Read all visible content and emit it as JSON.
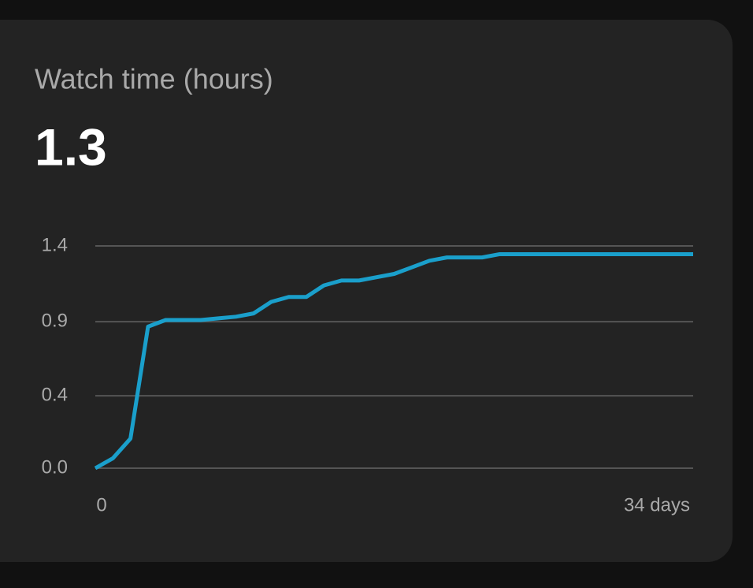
{
  "chart_data": {
    "type": "line",
    "title": "Watch time (hours)",
    "headline": "1.3",
    "x": [
      0,
      1,
      2,
      3,
      4,
      5,
      6,
      7,
      8,
      9,
      10,
      11,
      12,
      13,
      14,
      15,
      16,
      17,
      18,
      19,
      20,
      21,
      22,
      23,
      24,
      25,
      26,
      27,
      28,
      29,
      30,
      31,
      32,
      33,
      34
    ],
    "values": [
      0,
      0.06,
      0.18,
      0.86,
      0.9,
      0.9,
      0.9,
      0.91,
      0.92,
      0.94,
      1.01,
      1.04,
      1.04,
      1.11,
      1.14,
      1.14,
      1.16,
      1.18,
      1.22,
      1.26,
      1.28,
      1.28,
      1.28,
      1.3,
      1.3,
      1.3,
      1.3,
      1.3,
      1.3,
      1.3,
      1.3,
      1.3,
      1.3,
      1.3,
      1.3
    ],
    "color": "#1a9fcb",
    "xlim": [
      0,
      34
    ],
    "xticks": [
      0,
      {
        "value": 34,
        "label": "34 days"
      }
    ],
    "ylim": [
      0,
      1.35
    ],
    "yticks": [
      {
        "value": 0,
        "label": "0.0"
      },
      {
        "value": 0.44,
        "label": "0.4"
      },
      {
        "value": 0.89,
        "label": "0.9"
      },
      {
        "value": 1.35,
        "label": "1.4"
      }
    ],
    "grid": true
  }
}
